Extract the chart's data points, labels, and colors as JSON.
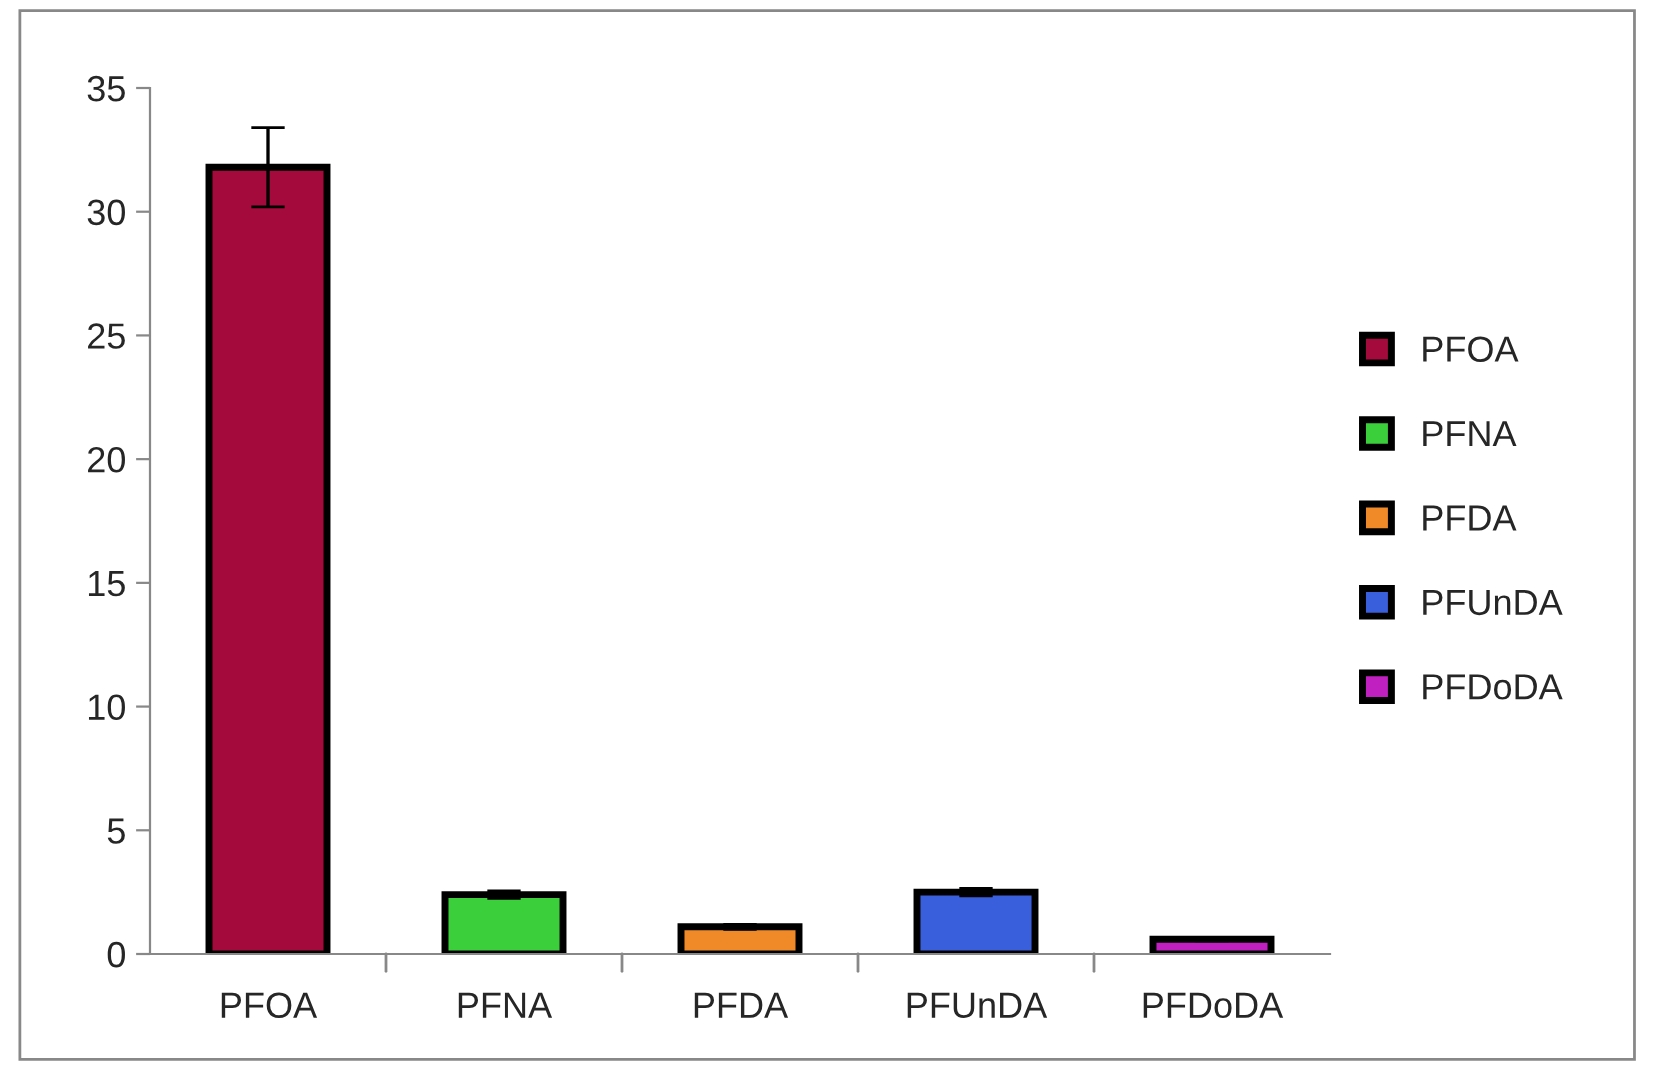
{
  "chart_data": {
    "type": "bar",
    "categories": [
      "PFOA",
      "PFNA",
      "PFDA",
      "PFUnDA",
      "PFDoDA"
    ],
    "series": [
      {
        "name": "PFOA",
        "color": "#a50a3c",
        "values": [
          31.8,
          null,
          null,
          null,
          null
        ],
        "errors": [
          1.6,
          null,
          null,
          null,
          null
        ]
      },
      {
        "name": "PFNA",
        "color": "#3ccf3c",
        "values": [
          null,
          2.4,
          null,
          null,
          null
        ],
        "errors": [
          null,
          0.15,
          null,
          null,
          null
        ]
      },
      {
        "name": "PFDA",
        "color": "#f08a28",
        "values": [
          null,
          null,
          1.1,
          null,
          null
        ],
        "errors": [
          null,
          null,
          0.1,
          null,
          null
        ]
      },
      {
        "name": "PFUnDA",
        "color": "#3a5fdc",
        "values": [
          null,
          null,
          null,
          2.5,
          null
        ],
        "errors": [
          null,
          null,
          null,
          0.15,
          null
        ]
      },
      {
        "name": "PFDoDA",
        "color": "#c020c0",
        "values": [
          null,
          null,
          null,
          null,
          0.6
        ],
        "errors": [
          null,
          null,
          null,
          null,
          0.07
        ]
      }
    ],
    "ylim": [
      0,
      35
    ],
    "yticks": [
      0,
      5,
      10,
      15,
      20,
      25,
      30,
      35
    ],
    "grid": false,
    "legend": "right"
  }
}
